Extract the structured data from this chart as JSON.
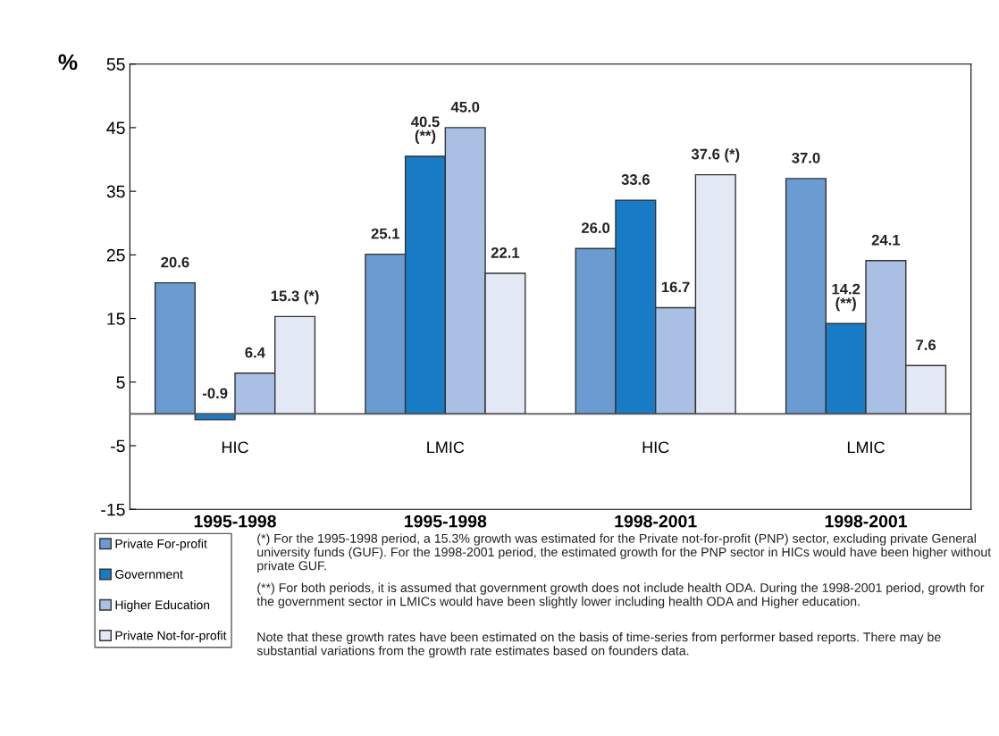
{
  "chart_data": {
    "type": "bar",
    "ylabel": "%",
    "categories": [
      "HIC",
      "LMIC",
      "HIC",
      "LMIC"
    ],
    "series": [
      {
        "name": "Private For-profit",
        "color": "#6a9bd1",
        "values": [
          20.6,
          25.1,
          26.0,
          37.0
        ],
        "value_labels": [
          "20.6",
          "25.1",
          "26.0",
          "37.0"
        ]
      },
      {
        "name": "Government",
        "color": "#187bc5",
        "values": [
          -0.9,
          40.5,
          33.6,
          14.2
        ],
        "value_labels": [
          "-0.9",
          "40.5\n(**)",
          "33.6",
          "14.2\n(**)"
        ]
      },
      {
        "name": "Higher Education",
        "color": "#a9c0e4",
        "values": [
          6.4,
          45.0,
          16.7,
          24.1
        ],
        "value_labels": [
          "6.4",
          "45.0",
          "16.7",
          "24.1"
        ]
      },
      {
        "name": "Private Not-for-profit",
        "color": "#e2e9f5",
        "values": [
          15.3,
          22.1,
          37.6,
          7.6
        ],
        "value_labels": [
          "15.3 (*)",
          "22.1",
          "37.6 (*)",
          "7.6"
        ]
      }
    ],
    "ylim": [
      -15,
      55
    ],
    "yticks": [
      -15,
      -5,
      5,
      15,
      25,
      35,
      45,
      55
    ],
    "grid": false,
    "legend": "bottom left",
    "annotations": [
      "1995-1998",
      "1995-1998",
      "1998-2001",
      "1998-2001",
      "(*) For the 1995-1998 period, a 15.3% growth was estimated for the Private not-for-profit (PNP) sector, excluding private General university funds (GUF). For the 1998-2001 period, the estimated growth for the PNP sector in HICs would have been higher without private GUF.",
      "(**) For both periods, it is assumed that government growth does not include health ODA. During the 1998-2001 period, growth for the government sector in LMICs would have been slightly lower including health ODA and Higher education.",
      "Note that these growth rates have been estimated on the basis of time-series from performer based reports. There may be substantial variations from the growth rate estimates based on founders data."
    ]
  }
}
